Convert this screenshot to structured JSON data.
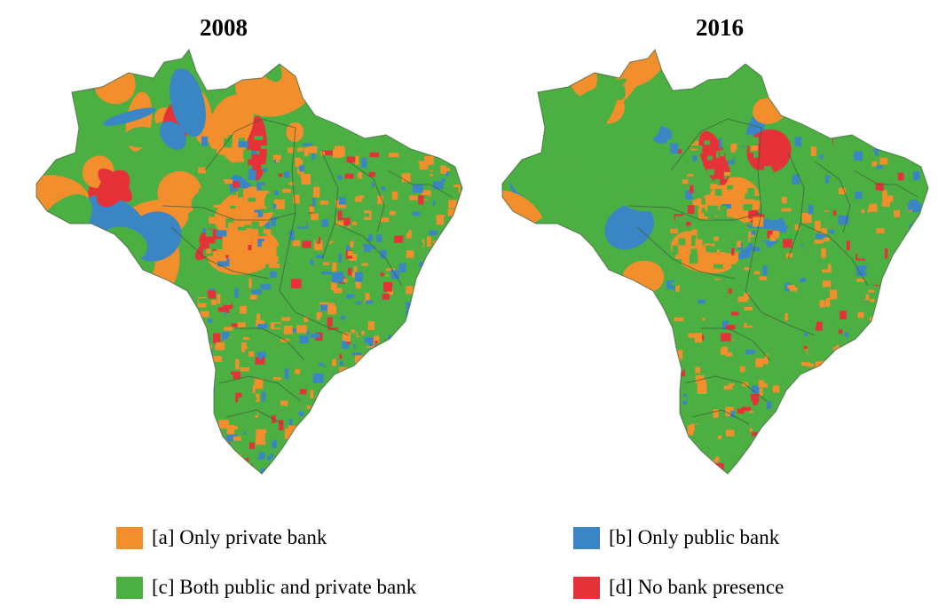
{
  "maps": [
    {
      "title": "2008",
      "dominant_category": "c",
      "category_shares": {
        "a": 0.3,
        "b": 0.16,
        "c": 0.46,
        "d": 0.08
      }
    },
    {
      "title": "2016",
      "dominant_category": "c",
      "category_shares": {
        "a": 0.17,
        "b": 0.06,
        "c": 0.7,
        "d": 0.07
      }
    }
  ],
  "legend": [
    {
      "key": "a",
      "label": "[a] Only private bank",
      "color": "#f28e2b"
    },
    {
      "key": "b",
      "label": "[b] Only public bank",
      "color": "#3a86c4"
    },
    {
      "key": "c",
      "label": "[c] Both public and private bank",
      "color": "#4caf42"
    },
    {
      "key": "d",
      "label": "[d] No bank presence",
      "color": "#e53238"
    }
  ],
  "border_color": "#3d5a3a"
}
